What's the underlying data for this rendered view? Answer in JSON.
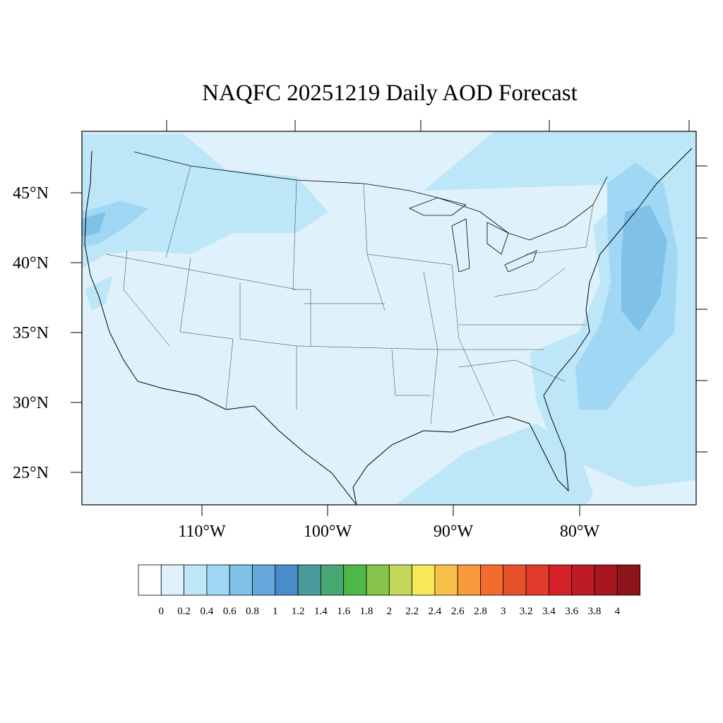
{
  "title": "NAQFC 20251219 Daily AOD Forecast",
  "lat_labels": [
    "45°N",
    "40°N",
    "35°N",
    "30°N",
    "25°N"
  ],
  "lon_labels": [
    "110°W",
    "100°W",
    "90°W",
    "80°W"
  ],
  "colorbar": {
    "colors": [
      "#ffffff",
      "#dff2fb",
      "#bde6f8",
      "#9fd7f4",
      "#80c1e8",
      "#67a8dc",
      "#4a8bcb",
      "#4a9b9b",
      "#48a772",
      "#4db847",
      "#86c44d",
      "#c3d85a",
      "#f7e85a",
      "#f8c049",
      "#f79a3c",
      "#f46b2e",
      "#e6512c",
      "#e03b2a",
      "#d5222a",
      "#bf1b26",
      "#a8171f",
      "#8e141b"
    ],
    "labels": [
      "0",
      "0.2",
      "0.4",
      "0.6",
      "0.8",
      "1",
      "1.2",
      "1.4",
      "1.6",
      "1.8",
      "2",
      "2.2",
      "2.4",
      "2.6",
      "2.8",
      "3",
      "3.2",
      "3.4",
      "3.6",
      "3.8",
      "4"
    ]
  },
  "colors": {
    "background_aod": "#dff2fb",
    "light_aod": "#bde6f8",
    "medium_aod": "#9fd7f4",
    "high_aod": "#80c1e8"
  }
}
